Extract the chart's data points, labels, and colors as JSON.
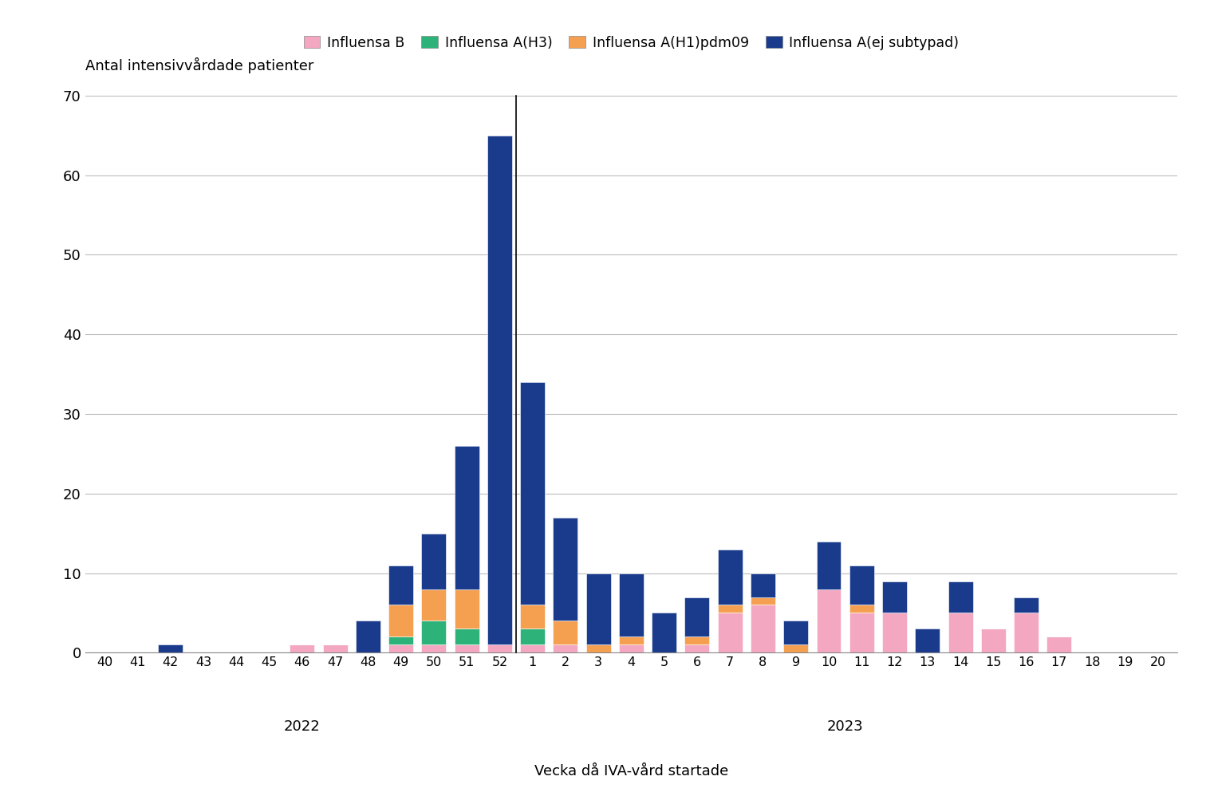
{
  "weeks": [
    "40",
    "41",
    "42",
    "43",
    "44",
    "45",
    "46",
    "47",
    "48",
    "49",
    "50",
    "51",
    "52",
    "1",
    "2",
    "3",
    "4",
    "5",
    "6",
    "7",
    "8",
    "9",
    "10",
    "11",
    "12",
    "13",
    "14",
    "15",
    "16",
    "17",
    "18",
    "19",
    "20"
  ],
  "influensa_B": [
    0,
    0,
    0,
    0,
    0,
    0,
    1,
    1,
    0,
    1,
    1,
    1,
    1,
    1,
    1,
    0,
    1,
    0,
    1,
    5,
    6,
    0,
    8,
    5,
    5,
    0,
    5,
    3,
    5,
    2,
    0,
    0,
    0
  ],
  "influensa_A_H3": [
    0,
    0,
    0,
    0,
    0,
    0,
    0,
    0,
    0,
    1,
    3,
    2,
    0,
    2,
    0,
    0,
    0,
    0,
    0,
    0,
    0,
    0,
    0,
    0,
    0,
    0,
    0,
    0,
    0,
    0,
    0,
    0,
    0
  ],
  "influensa_A_H1pdm09": [
    0,
    0,
    0,
    0,
    0,
    0,
    0,
    0,
    0,
    4,
    4,
    5,
    0,
    3,
    3,
    1,
    1,
    0,
    1,
    1,
    1,
    1,
    0,
    1,
    0,
    0,
    0,
    0,
    0,
    0,
    0,
    0,
    0
  ],
  "influensa_A_ej": [
    0,
    0,
    1,
    0,
    0,
    0,
    0,
    0,
    4,
    5,
    7,
    18,
    64,
    28,
    13,
    9,
    8,
    5,
    5,
    7,
    3,
    3,
    6,
    5,
    4,
    3,
    4,
    0,
    2,
    0,
    0,
    0,
    0
  ],
  "colors": {
    "influensa_B": "#f4a7c0",
    "influensa_A_H3": "#2db37a",
    "influensa_A_H1pdm09": "#f4a050",
    "influensa_A_ej": "#1a3a8c"
  },
  "legend_labels": {
    "influensa_B": "Influensa B",
    "influensa_A_H3": "Influensa A(H3)",
    "influensa_A_H1pdm09": "Influensa A(H1)pdm09",
    "influensa_A_ej": "Influensa A(ej subtypad)"
  },
  "ylabel": "Antal intensivvårdade patienter",
  "xlabel": "Vecka då IVA-vård startade",
  "ylim": [
    0,
    70
  ],
  "yticks": [
    0,
    10,
    20,
    30,
    40,
    50,
    60,
    70
  ],
  "divider_after_index": 12,
  "background_color": "#ffffff",
  "grid_color": "#bbbbbb"
}
